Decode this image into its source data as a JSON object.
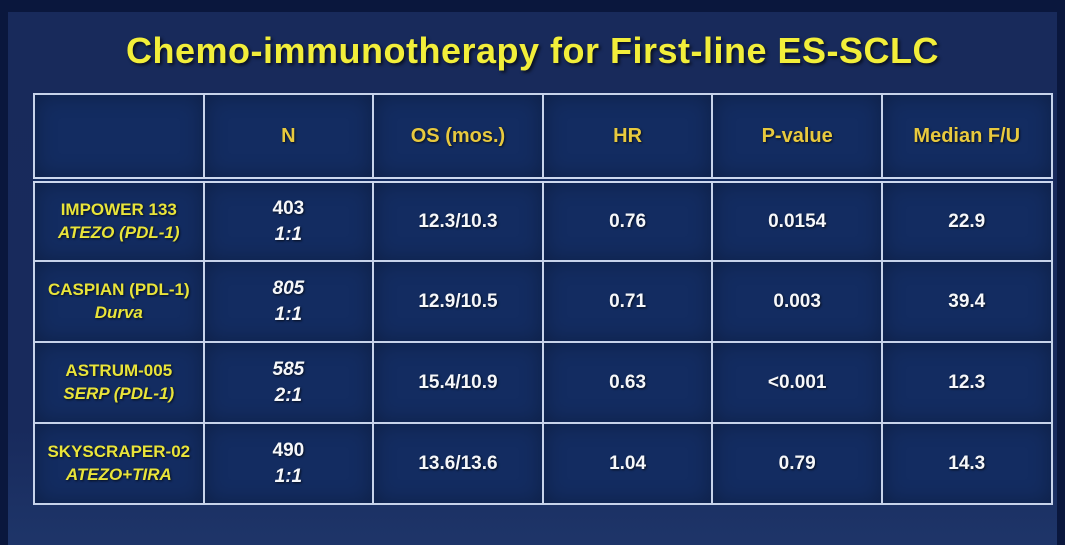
{
  "slide": {
    "title": "Chemo-immunotherapy for First-line ES-SCLC"
  },
  "table": {
    "headers": [
      "",
      "N",
      "OS (mos.)",
      "HR",
      "P-value",
      "Median F/U"
    ],
    "rows": [
      {
        "study_line1": "IMPOWER 133",
        "study_line2": "ATEZO (PDL-1)",
        "n_value": "403",
        "n_ratio": "1:1",
        "os": "12.3/10.3",
        "hr": "0.76",
        "p_value": "0.0154",
        "median_fu": "22.9"
      },
      {
        "study_line1": "CASPIAN (PDL-1)",
        "study_line2": "Durva",
        "n_value": "805",
        "n_ratio": "1:1",
        "os": "12.9/10.5",
        "hr": "0.71",
        "p_value": "0.003",
        "median_fu": "39.4"
      },
      {
        "study_line1": "ASTRUM-005",
        "study_line2": "SERP (PDL-1)",
        "n_value": "585",
        "n_ratio": "2:1",
        "os": "15.4/10.9",
        "hr": "0.63",
        "p_value": "<0.001",
        "median_fu": "12.3"
      },
      {
        "study_line1": "SKYSCRAPER-02",
        "study_line2": "ATEZO+TIRA",
        "n_value": "490",
        "n_ratio": "1:1",
        "os": "13.6/13.6",
        "hr": "1.04",
        "p_value": "0.79",
        "median_fu": "14.3"
      }
    ]
  },
  "colors": {
    "frame_background": "#0a173d",
    "slide_background": "#182a5b",
    "cell_background": "#132c61",
    "table_border": "#c7d3ea",
    "title_yellow": "#f2ee3a",
    "header_gold": "#e8c93e",
    "study_yellow": "#e9e43a",
    "data_white": "#f5f7fa"
  }
}
